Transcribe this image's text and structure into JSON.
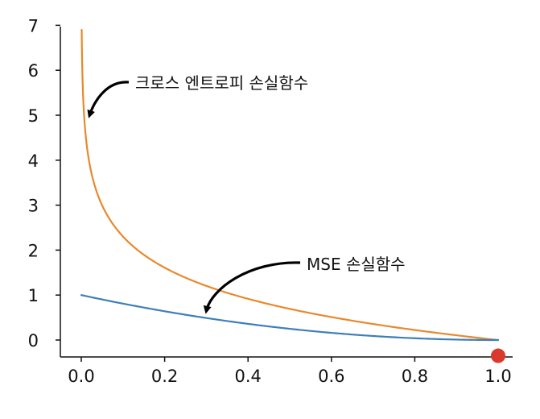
{
  "chart_data": {
    "type": "line",
    "title": "",
    "xlabel": "",
    "ylabel": "",
    "xlim": [
      0.0,
      1.0
    ],
    "ylim": [
      0,
      7
    ],
    "x_ticks": [
      "0.0",
      "0.2",
      "0.4",
      "0.6",
      "0.8",
      "1.0"
    ],
    "y_ticks": [
      "0",
      "1",
      "2",
      "3",
      "4",
      "5",
      "6",
      "7"
    ],
    "grid": false,
    "series": [
      {
        "color": "#E8892B",
        "function": "-ln(x)",
        "x": [
          0.001,
          0.005,
          0.01,
          0.02,
          0.05,
          0.1,
          0.2,
          0.3,
          0.4,
          0.5,
          0.6,
          0.7,
          0.8,
          0.9,
          1.0
        ],
        "values": [
          6.91,
          5.3,
          4.61,
          3.91,
          3.0,
          2.3,
          1.61,
          1.2,
          0.92,
          0.69,
          0.51,
          0.36,
          0.22,
          0.11,
          0.0
        ]
      },
      {
        "color": "#3F7FB8",
        "function": "(1-x)^2",
        "x": [
          0.0,
          0.1,
          0.2,
          0.3,
          0.4,
          0.5,
          0.6,
          0.7,
          0.8,
          0.9,
          1.0
        ],
        "values": [
          1.0,
          0.81,
          0.64,
          0.49,
          0.36,
          0.25,
          0.16,
          0.09,
          0.04,
          0.01,
          0.0
        ]
      }
    ],
    "annotations": [
      {
        "text": "크로스 엔트로피 손실함수",
        "arrow_to": {
          "x": 0.02,
          "y": 5.0
        }
      },
      {
        "text": "MSE 손실함수",
        "arrow_to": {
          "x": 0.3,
          "y": 0.65
        }
      }
    ],
    "marker": {
      "x": 1.0,
      "y": -0.35,
      "color": "#D93A2B"
    }
  }
}
